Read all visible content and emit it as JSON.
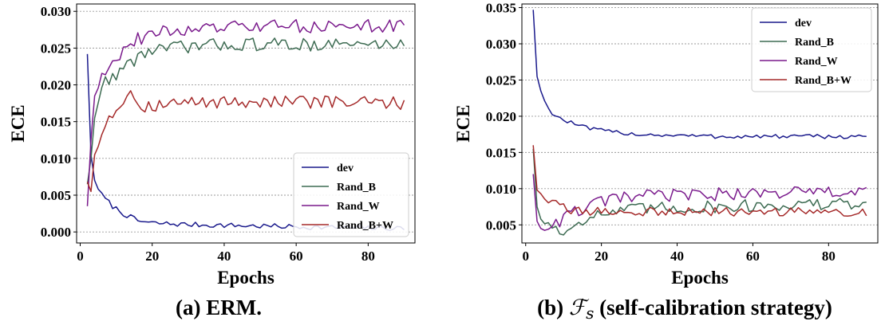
{
  "colors": {
    "dev": "#1a1a8c",
    "rand_b": "#3d6b52",
    "rand_w": "#7a1a8c",
    "rand_bw": "#a52a2a"
  },
  "chart_data": [
    {
      "type": "line",
      "caption": "(a) ERM.",
      "xlabel": "Epochs",
      "ylabel": "ECE",
      "xlim": [
        -1,
        93
      ],
      "ylim": [
        -0.0015,
        0.031
      ],
      "xticks": [
        0,
        20,
        40,
        60,
        80
      ],
      "xtick_labels": [
        "0",
        "20",
        "40",
        "60",
        "80"
      ],
      "yticks": [
        0,
        0.005,
        0.01,
        0.015,
        0.02,
        0.025,
        0.03
      ],
      "ytick_labels": [
        "0.000",
        "0.005",
        "0.010",
        "0.015",
        "0.020",
        "0.025",
        "0.030"
      ],
      "legend_position": "lower-right",
      "grid": "horizontal dotted",
      "series": [
        {
          "name": "dev",
          "color_key": "dev",
          "anchors": [
            [
              2,
              0.0242
            ],
            [
              3,
              0.0105
            ],
            [
              4,
              0.007
            ],
            [
              6,
              0.005
            ],
            [
              9,
              0.0035
            ],
            [
              12,
              0.0025
            ],
            [
              16,
              0.0015
            ],
            [
              20,
              0.0012
            ],
            [
              30,
              0.001
            ],
            [
              50,
              0.0008
            ],
            [
              70,
              0.0006
            ],
            [
              90,
              0.0005
            ]
          ],
          "noise": 0.00035
        },
        {
          "name": "Rand_B",
          "color_key": "rand_b",
          "anchors": [
            [
              2,
              0.0065
            ],
            [
              3,
              0.01
            ],
            [
              4,
              0.0155
            ],
            [
              5,
              0.018
            ],
            [
              7,
              0.0205
            ],
            [
              10,
              0.0215
            ],
            [
              14,
              0.023
            ],
            [
              18,
              0.0245
            ],
            [
              25,
              0.025
            ],
            [
              40,
              0.0255
            ],
            [
              60,
              0.0255
            ],
            [
              90,
              0.0255
            ]
          ],
          "noise": 0.0009
        },
        {
          "name": "Rand_W",
          "color_key": "rand_w",
          "anchors": [
            [
              2,
              0.0035
            ],
            [
              3,
              0.0125
            ],
            [
              4,
              0.0185
            ],
            [
              6,
              0.0215
            ],
            [
              9,
              0.0235
            ],
            [
              12,
              0.0245
            ],
            [
              15,
              0.026
            ],
            [
              20,
              0.027
            ],
            [
              30,
              0.0275
            ],
            [
              50,
              0.028
            ],
            [
              70,
              0.028
            ],
            [
              90,
              0.028
            ]
          ],
          "noise": 0.0009
        },
        {
          "name": "Rand_B+W",
          "color_key": "rand_bw",
          "anchors": [
            [
              2,
              0.0068
            ],
            [
              3,
              0.0055
            ],
            [
              4,
              0.0105
            ],
            [
              6,
              0.0135
            ],
            [
              8,
              0.016
            ],
            [
              11,
              0.017
            ],
            [
              14,
              0.0195
            ],
            [
              17,
              0.017
            ],
            [
              25,
              0.0175
            ],
            [
              40,
              0.0177
            ],
            [
              60,
              0.0177
            ],
            [
              90,
              0.0175
            ]
          ],
          "noise": 0.00085
        }
      ]
    },
    {
      "type": "line",
      "caption": "(b) ℱs (self-calibration strategy)",
      "caption_parts": {
        "open": "(b) ",
        "symbol": "ℱ",
        "subscript": "s",
        "rest": " (self-calibration strategy)"
      },
      "xlabel": "Epochs",
      "ylabel": "ECE",
      "xlim": [
        -1,
        93
      ],
      "ylim": [
        0.0025,
        0.0355
      ],
      "xticks": [
        0,
        20,
        40,
        60,
        80
      ],
      "xtick_labels": [
        "0",
        "20",
        "40",
        "60",
        "80"
      ],
      "yticks": [
        0.005,
        0.01,
        0.015,
        0.02,
        0.025,
        0.03,
        0.035
      ],
      "ytick_labels": [
        "0.005",
        "0.010",
        "0.015",
        "0.020",
        "0.025",
        "0.030",
        "0.035"
      ],
      "legend_position": "top-right",
      "grid": "horizontal dotted",
      "series": [
        {
          "name": "dev",
          "color_key": "dev",
          "anchors": [
            [
              2,
              0.0347
            ],
            [
              3,
              0.0255
            ],
            [
              4,
              0.0235
            ],
            [
              6,
              0.021
            ],
            [
              8,
              0.02
            ],
            [
              10,
              0.0195
            ],
            [
              15,
              0.0185
            ],
            [
              20,
              0.018
            ],
            [
              30,
              0.0175
            ],
            [
              50,
              0.0172
            ],
            [
              70,
              0.0172
            ],
            [
              90,
              0.0172
            ]
          ],
          "noise": 0.0003
        },
        {
          "name": "Rand_B",
          "color_key": "rand_b",
          "anchors": [
            [
              2,
              0.0155
            ],
            [
              3,
              0.0075
            ],
            [
              4,
              0.0058
            ],
            [
              7,
              0.005
            ],
            [
              10,
              0.0035
            ],
            [
              13,
              0.0055
            ],
            [
              20,
              0.0065
            ],
            [
              30,
              0.0072
            ],
            [
              50,
              0.0075
            ],
            [
              70,
              0.0078
            ],
            [
              90,
              0.0078
            ]
          ],
          "noise": 0.0009
        },
        {
          "name": "Rand_W",
          "color_key": "rand_w",
          "anchors": [
            [
              2,
              0.012
            ],
            [
              3,
              0.0055
            ],
            [
              4,
              0.0045
            ],
            [
              7,
              0.0048
            ],
            [
              10,
              0.006
            ],
            [
              15,
              0.0072
            ],
            [
              20,
              0.0082
            ],
            [
              30,
              0.009
            ],
            [
              50,
              0.0092
            ],
            [
              70,
              0.0095
            ],
            [
              90,
              0.0095
            ]
          ],
          "noise": 0.0009
        },
        {
          "name": "Rand_B+W",
          "color_key": "rand_bw",
          "anchors": [
            [
              2,
              0.016
            ],
            [
              3,
              0.0098
            ],
            [
              5,
              0.0088
            ],
            [
              8,
              0.0078
            ],
            [
              12,
              0.007
            ],
            [
              20,
              0.0068
            ],
            [
              30,
              0.0068
            ],
            [
              50,
              0.0068
            ],
            [
              70,
              0.0068
            ],
            [
              90,
              0.0068
            ]
          ],
          "noise": 0.0006
        }
      ]
    }
  ]
}
